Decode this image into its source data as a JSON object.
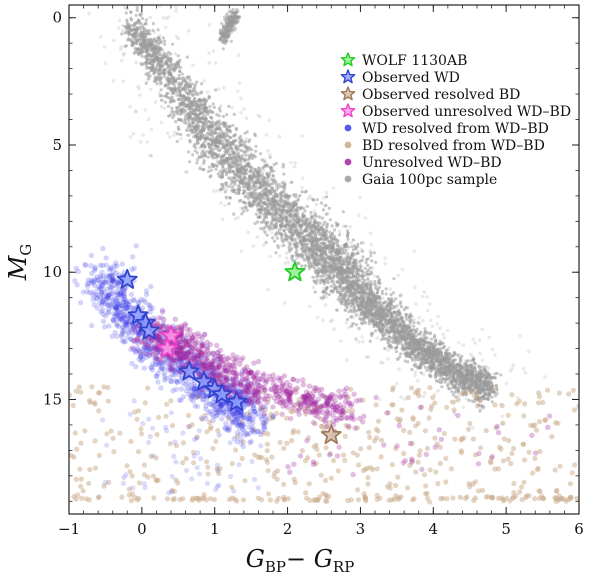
{
  "chart_data": {
    "type": "scatter",
    "title": "",
    "xlabel": {
      "main": "G",
      "sub1": "BP",
      "sep": "− ",
      "main2": "G",
      "sub2": "RP"
    },
    "ylabel": {
      "main": "M",
      "sub": "G"
    },
    "xlim": [
      -1,
      6
    ],
    "ylim": [
      19.5,
      -0.5
    ],
    "y_inverted": true,
    "xticks": [
      -1,
      0,
      1,
      2,
      3,
      4,
      5,
      6
    ],
    "yticks": [
      0,
      5,
      10,
      15
    ],
    "grid": false,
    "legend_position": "top-right",
    "legend": [
      {
        "label": "WOLF 1130AB",
        "marker": "star",
        "color": "#22cc22"
      },
      {
        "label": "Observed WD",
        "marker": "star",
        "color": "#3344cc"
      },
      {
        "label": "Observed resolved BD",
        "marker": "star",
        "color": "#9c7a5a"
      },
      {
        "label": "Observed unresolved WD–BD",
        "marker": "star",
        "color": "#ee44cc"
      },
      {
        "label": "WD resolved from WD–BD",
        "marker": "dot",
        "color": "#3a3ae6"
      },
      {
        "label": "BD resolved from WD–BD",
        "marker": "dot",
        "color": "#c9a98a"
      },
      {
        "label": "Unresolved WD–BD",
        "marker": "dot",
        "color": "#a0269e"
      },
      {
        "label": "Gaia 100pc sample",
        "marker": "dot",
        "color": "#9a9a9a"
      }
    ],
    "series": [
      {
        "name": "Gaia 100pc sample",
        "kind": "density_band",
        "color": "#9a9a9a",
        "main_sequence_path": [
          [
            -0.15,
            0.3
          ],
          [
            0.3,
            2.0
          ],
          [
            0.8,
            4.0
          ],
          [
            1.2,
            5.5
          ],
          [
            1.7,
            7.0
          ],
          [
            2.2,
            8.3
          ],
          [
            2.6,
            9.5
          ],
          [
            2.9,
            10.6
          ],
          [
            3.3,
            11.8
          ],
          [
            3.8,
            13.0
          ],
          [
            4.3,
            14.0
          ],
          [
            4.8,
            14.6
          ]
        ],
        "giant_branch_path": [
          [
            1.1,
            0.9
          ],
          [
            1.2,
            0.3
          ],
          [
            1.3,
            -0.1
          ]
        ]
      },
      {
        "name": "WD resolved from WD–BD",
        "kind": "cloud",
        "color": "#3a3ae6",
        "sequence": [
          [
            -0.55,
            10.0
          ],
          [
            -0.3,
            11.3
          ],
          [
            0.0,
            12.3
          ],
          [
            0.4,
            13.3
          ],
          [
            0.8,
            14.2
          ],
          [
            1.1,
            14.8
          ],
          [
            1.3,
            15.3
          ],
          [
            1.5,
            16.0
          ]
        ]
      },
      {
        "name": "Unresolved WD–BD",
        "kind": "cloud",
        "color": "#a0269e",
        "sequence": [
          [
            0.2,
            12.3
          ],
          [
            0.6,
            13.2
          ],
          [
            1.0,
            13.9
          ],
          [
            1.4,
            14.4
          ],
          [
            1.9,
            14.8
          ],
          [
            2.4,
            15.2
          ],
          [
            2.8,
            15.5
          ]
        ]
      },
      {
        "name": "BD resolved from WD–BD",
        "kind": "cloud",
        "color": "#c9a98a",
        "x_range": [
          -1,
          6
        ],
        "y_range": [
          14.5,
          19.0
        ]
      },
      {
        "name": "Observed WD",
        "kind": "stars",
        "color": "#3344cc",
        "points": [
          [
            -0.2,
            10.3
          ],
          [
            -0.05,
            11.7
          ],
          [
            0.05,
            12.0
          ],
          [
            0.1,
            12.3
          ],
          [
            0.65,
            13.9
          ],
          [
            0.85,
            14.3
          ],
          [
            1.0,
            14.6
          ],
          [
            1.1,
            14.8
          ],
          [
            1.3,
            15.1
          ]
        ]
      },
      {
        "name": "Observed unresolved WD–BD",
        "kind": "stars",
        "color": "#ee44cc",
        "points": [
          [
            0.4,
            12.5
          ],
          [
            0.35,
            13.0
          ]
        ]
      },
      {
        "name": "Observed resolved BD",
        "kind": "stars",
        "color": "#9c7a5a",
        "points": [
          [
            2.6,
            16.4
          ]
        ]
      },
      {
        "name": "WOLF 1130AB",
        "kind": "stars",
        "color": "#22cc22",
        "points": [
          [
            2.1,
            10.0
          ]
        ]
      }
    ]
  }
}
